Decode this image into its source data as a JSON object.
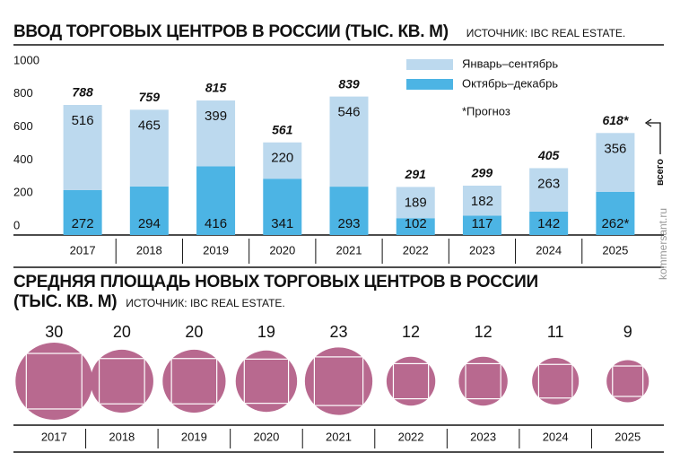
{
  "chart_data": [
    {
      "type": "stacked-bar",
      "title": "ВВОД ТОРГОВЫХ ЦЕНТРОВ В РОССИИ (ТЫС. КВ. М)",
      "source": "ИСТОЧНИК: IBC REAL ESTATE.",
      "categories": [
        "2017",
        "2018",
        "2019",
        "2020",
        "2021",
        "2022",
        "2023",
        "2024",
        "2025"
      ],
      "series": [
        {
          "name": "Октябрь–декабрь",
          "color": "#4cb4e4",
          "values": [
            272,
            294,
            416,
            341,
            293,
            102,
            117,
            142,
            262
          ],
          "value_labels": [
            "272",
            "294",
            "416",
            "341",
            "293",
            "102",
            "117",
            "142",
            "262*"
          ]
        },
        {
          "name": "Январь–сентябрь",
          "color": "#bcd9ee",
          "values": [
            516,
            465,
            399,
            220,
            546,
            189,
            182,
            263,
            356
          ]
        }
      ],
      "totals": [
        788,
        759,
        815,
        561,
        839,
        291,
        299,
        405,
        618
      ],
      "total_labels": [
        "788",
        "759",
        "815",
        "561",
        "839",
        "291",
        "299",
        "405",
        "618*"
      ],
      "ylim": [
        0,
        1000
      ],
      "yticks": [
        0,
        200,
        400,
        600,
        800,
        1000
      ],
      "legend": "top-right",
      "annotations": [
        "*Прогноз",
        "всего"
      ],
      "watermark": "kommersant.ru"
    },
    {
      "type": "bubble",
      "title": "СРЕДНЯЯ ПЛОЩАДЬ НОВЫХ ТОРГОВЫХ ЦЕНТРОВ В РОССИИ (ТЫС. КВ. М)",
      "source": "ИСТОЧНИК: IBC REAL ESTATE.",
      "categories": [
        "2017",
        "2018",
        "2019",
        "2020",
        "2021",
        "2022",
        "2023",
        "2024",
        "2025"
      ],
      "values": [
        30,
        20,
        20,
        19,
        23,
        12,
        12,
        11,
        9
      ],
      "color": "#b8698f"
    }
  ]
}
